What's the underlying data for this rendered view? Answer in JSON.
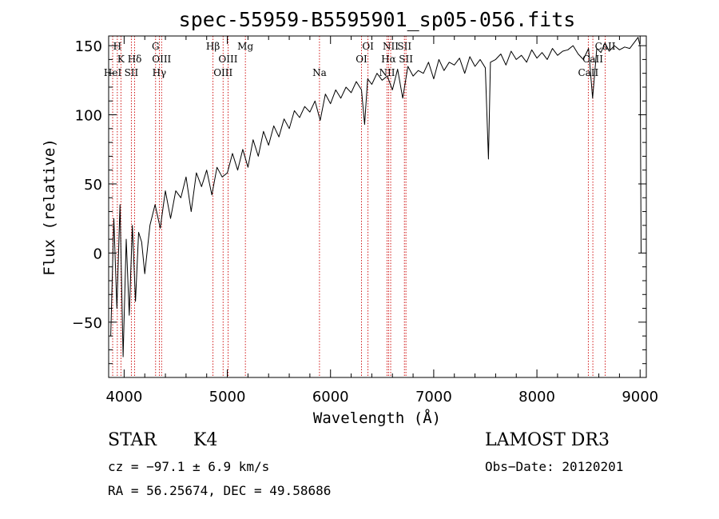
{
  "chart_data": {
    "type": "line",
    "title": "spec-55959-B5595901_sp05-056.fits",
    "xlabel": "Wavelength (Å)",
    "ylabel": "Flux (relative)",
    "xlim": [
      3850,
      9060
    ],
    "ylim": [
      -90,
      157
    ],
    "xticks": [
      4000,
      5000,
      6000,
      7000,
      8000,
      9000
    ],
    "yticks": [
      -50,
      0,
      50,
      100,
      150
    ],
    "series": [
      {
        "name": "flux",
        "x": [
          3870,
          3900,
          3930,
          3960,
          3990,
          4020,
          4050,
          4080,
          4110,
          4140,
          4170,
          4200,
          4250,
          4300,
          4350,
          4400,
          4450,
          4500,
          4550,
          4600,
          4650,
          4700,
          4750,
          4800,
          4850,
          4900,
          4950,
          5000,
          5050,
          5100,
          5150,
          5200,
          5250,
          5300,
          5350,
          5400,
          5450,
          5500,
          5550,
          5600,
          5650,
          5700,
          5750,
          5800,
          5850,
          5900,
          5950,
          6000,
          6050,
          6100,
          6150,
          6200,
          6250,
          6300,
          6330,
          6360,
          6400,
          6450,
          6500,
          6550,
          6600,
          6650,
          6700,
          6750,
          6800,
          6850,
          6900,
          6950,
          7000,
          7050,
          7100,
          7150,
          7200,
          7250,
          7300,
          7350,
          7400,
          7450,
          7500,
          7530,
          7550,
          7600,
          7650,
          7700,
          7750,
          7800,
          7850,
          7900,
          7950,
          8000,
          8050,
          8100,
          8150,
          8200,
          8250,
          8300,
          8350,
          8400,
          8450,
          8500,
          8540,
          8580,
          8620,
          8660,
          8700,
          8750,
          8800,
          8850,
          8900,
          8950,
          8980,
          9000,
          9010
        ],
        "values": [
          -60,
          25,
          -40,
          35,
          -75,
          10,
          -45,
          20,
          -35,
          15,
          8,
          -15,
          20,
          35,
          18,
          45,
          25,
          45,
          40,
          55,
          30,
          58,
          48,
          60,
          42,
          62,
          55,
          58,
          72,
          60,
          75,
          62,
          82,
          70,
          88,
          78,
          92,
          84,
          97,
          90,
          103,
          98,
          106,
          102,
          110,
          96,
          115,
          108,
          118,
          112,
          120,
          116,
          124,
          118,
          93,
          126,
          122,
          130,
          125,
          128,
          118,
          133,
          112,
          135,
          128,
          132,
          130,
          138,
          126,
          140,
          132,
          138,
          136,
          141,
          130,
          142,
          135,
          140,
          134,
          68,
          138,
          140,
          144,
          136,
          146,
          140,
          143,
          138,
          147,
          141,
          145,
          140,
          148,
          143,
          146,
          147,
          150,
          144,
          140,
          148,
          112,
          148,
          145,
          152,
          146,
          150,
          147,
          149,
          148,
          153,
          156,
          150,
          0
        ]
      }
    ],
    "line_labels": [
      {
        "label": "H",
        "wave": 3934,
        "row": 1
      },
      {
        "label": "K",
        "wave": 3969,
        "row": 2
      },
      {
        "label": "HeI",
        "wave": 3889,
        "row": 3
      },
      {
        "label": "SII",
        "wave": 4070,
        "row": 3
      },
      {
        "label": "Hδ",
        "wave": 4102,
        "row": 2
      },
      {
        "label": "G",
        "wave": 4305,
        "row": 1
      },
      {
        "label": "OIII",
        "wave": 4363,
        "row": 2
      },
      {
        "label": "Hγ",
        "wave": 4341,
        "row": 3
      },
      {
        "label": "Hβ",
        "wave": 4861,
        "row": 1
      },
      {
        "label": "OIII",
        "wave": 5007,
        "row": 2
      },
      {
        "label": "OIII",
        "wave": 4959,
        "row": 3
      },
      {
        "label": "Mg",
        "wave": 5175,
        "row": 1
      },
      {
        "label": "Na",
        "wave": 5893,
        "row": 3
      },
      {
        "label": "OI",
        "wave": 6363,
        "row": 1
      },
      {
        "label": "OI",
        "wave": 6300,
        "row": 2
      },
      {
        "label": "NII",
        "wave": 6583,
        "row": 1
      },
      {
        "label": "SII",
        "wave": 6716,
        "row": 1
      },
      {
        "label": "Hα",
        "wave": 6563,
        "row": 2
      },
      {
        "label": "SII",
        "wave": 6731,
        "row": 2
      },
      {
        "label": "NII",
        "wave": 6548,
        "row": 3
      },
      {
        "label": "CaII",
        "wave": 8662,
        "row": 1
      },
      {
        "label": "CaII",
        "wave": 8542,
        "row": 2
      },
      {
        "label": "CaII",
        "wave": 8498,
        "row": 3
      }
    ],
    "line_marks": [
      3889,
      3934,
      3969,
      4070,
      4102,
      4305,
      4341,
      4363,
      4861,
      4959,
      5007,
      5175,
      5893,
      6300,
      6363,
      6548,
      6563,
      6583,
      6716,
      6731,
      8498,
      8542,
      8662
    ],
    "colors": {
      "spectrum": "#000000",
      "line_marks": "#cc0000",
      "axes": "#000000"
    }
  },
  "info": {
    "object_class": "STAR",
    "subclass": "K4",
    "survey": "LAMOST DR3",
    "cz": "cz = −97.1 ± 6.9 km/s",
    "obs_date": "Obs−Date: 20120201",
    "radec": "RA =  56.25674, DEC =  49.58686"
  }
}
